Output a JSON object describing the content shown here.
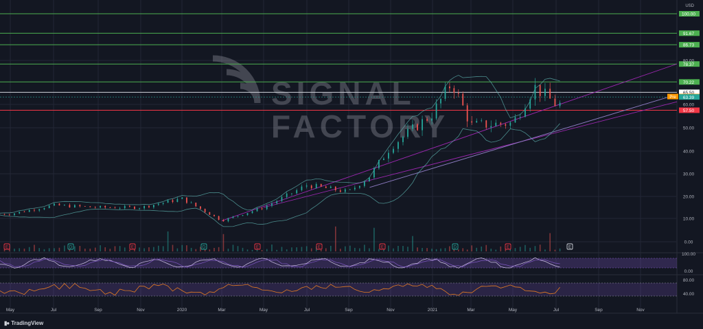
{
  "chart": {
    "currency_label": "USD",
    "watermark": {
      "line1": "SIGNAL",
      "line2": "FACTORY"
    },
    "brand": "TradingView",
    "colors": {
      "background": "#131722",
      "grid": "#232736",
      "candle_up": "#26a69a",
      "candle_down": "#ef5350",
      "band": "#5fb6b2",
      "trendline": "#9c27b0",
      "resistance_line": "#4caf50",
      "support_line": "#f23645",
      "white_line": "#d1d4dc",
      "osc1": "#7e57c2",
      "osc2": "#e67e22"
    },
    "price_axis": {
      "ticks": [
        0,
        10,
        20,
        30,
        40,
        50,
        60,
        80
      ],
      "tick_labels": [
        "0.00",
        "10.00",
        "20.00",
        "30.00",
        "40.00",
        "50.00",
        "60.00",
        "80.00"
      ],
      "levels": [
        {
          "label": "100.00",
          "color": "green"
        },
        {
          "label": "91.67",
          "color": "green"
        },
        {
          "label": "86.73",
          "color": "green"
        },
        {
          "label": "78.37",
          "color": "green"
        },
        {
          "label": "70.22",
          "color": "green"
        },
        {
          "label": "65.50",
          "color": "white"
        },
        {
          "label": "63.58",
          "color": "orange",
          "tag": "Pre"
        },
        {
          "label": "63.39",
          "color": "teal"
        },
        {
          "label": "57.50",
          "color": "red"
        }
      ]
    },
    "osc1_axis": [
      "100.00",
      "0.00"
    ],
    "osc2_axis": [
      "80.00",
      "40.00"
    ],
    "time_axis": [
      "May",
      "Jul",
      "Sep",
      "Nov",
      "2020",
      "Mar",
      "May",
      "Jul",
      "Sep",
      "Nov",
      "2021",
      "Mar",
      "May",
      "Jul",
      "Sep",
      "Nov"
    ],
    "event_markers": [
      "E",
      "D",
      "E",
      "D",
      "E",
      "E",
      "E",
      "D",
      "E",
      "E",
      "E"
    ]
  },
  "chart_data": {
    "type": "line",
    "title": "",
    "xlabel": "",
    "ylabel": "",
    "x": [
      "2019-05",
      "2019-07",
      "2019-09",
      "2019-11",
      "2020-01",
      "2020-03",
      "2020-05",
      "2020-07",
      "2020-09",
      "2020-10",
      "2020-11",
      "2021-01",
      "2021-02",
      "2021-03",
      "2021-05",
      "2021-06",
      "2021-07"
    ],
    "series": [
      {
        "values": [
          12,
          16,
          15,
          15,
          19,
          9,
          15,
          25,
          22,
          29,
          42,
          56,
          70,
          51,
          52,
          68,
          60
        ]
      }
    ],
    "ylim": [
      0,
      100
    ],
    "grid": true
  }
}
